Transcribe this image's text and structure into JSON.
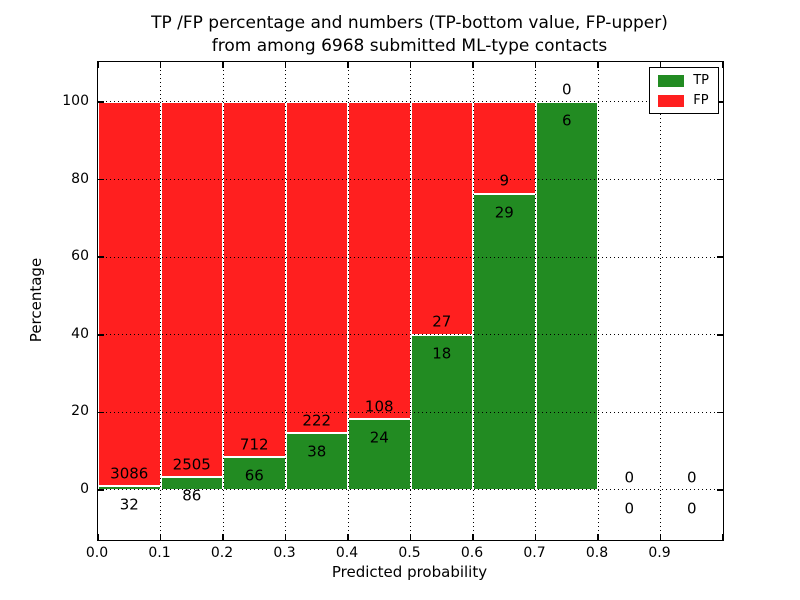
{
  "figure": {
    "title_line1": "TP /FP percentage and numbers (TP-bottom value, FP-upper)",
    "title_line2": "from among 6968 submitted ML-type contacts",
    "xlabel": "Predicted probability",
    "ylabel": "Percentage"
  },
  "legend": {
    "position": "upper-right",
    "items": [
      {
        "label": "TP",
        "color": "#228b22"
      },
      {
        "label": "FP",
        "color": "#ff1f1f"
      }
    ]
  },
  "chart_data": {
    "type": "bar",
    "stacked": true,
    "title": "TP /FP percentage and numbers (TP-bottom value, FP-upper) from among 6968 submitted ML-type contacts",
    "xlabel": "Predicted probability",
    "ylabel": "Percentage",
    "total_contacts": 6968,
    "bin_edges": [
      0.0,
      0.1,
      0.2,
      0.3,
      0.4,
      0.5,
      0.6,
      0.7,
      0.8,
      0.9,
      1.0
    ],
    "x_tick_labels": [
      "0.0",
      "0.1",
      "0.2",
      "0.3",
      "0.4",
      "0.5",
      "0.6",
      "0.7",
      "0.8",
      "0.9"
    ],
    "y_tick_values": [
      0,
      20,
      40,
      60,
      80,
      100
    ],
    "xlim": [
      0.0,
      1.0
    ],
    "ylim": [
      -12.9,
      110.3
    ],
    "grid": "dotted",
    "series": [
      {
        "name": "TP",
        "color": "#228b22",
        "counts": [
          32,
          86,
          66,
          38,
          24,
          18,
          29,
          6,
          0,
          0
        ],
        "percent": [
          1.03,
          3.32,
          8.48,
          14.62,
          18.18,
          40.0,
          76.32,
          100.0,
          0.0,
          0.0
        ]
      },
      {
        "name": "FP",
        "color": "#ff1f1f",
        "counts": [
          3086,
          2505,
          712,
          222,
          108,
          27,
          9,
          0,
          0,
          0
        ],
        "percent": [
          98.97,
          96.68,
          91.52,
          85.38,
          81.82,
          60.0,
          23.68,
          0.0,
          0.0,
          0.0
        ]
      }
    ]
  }
}
